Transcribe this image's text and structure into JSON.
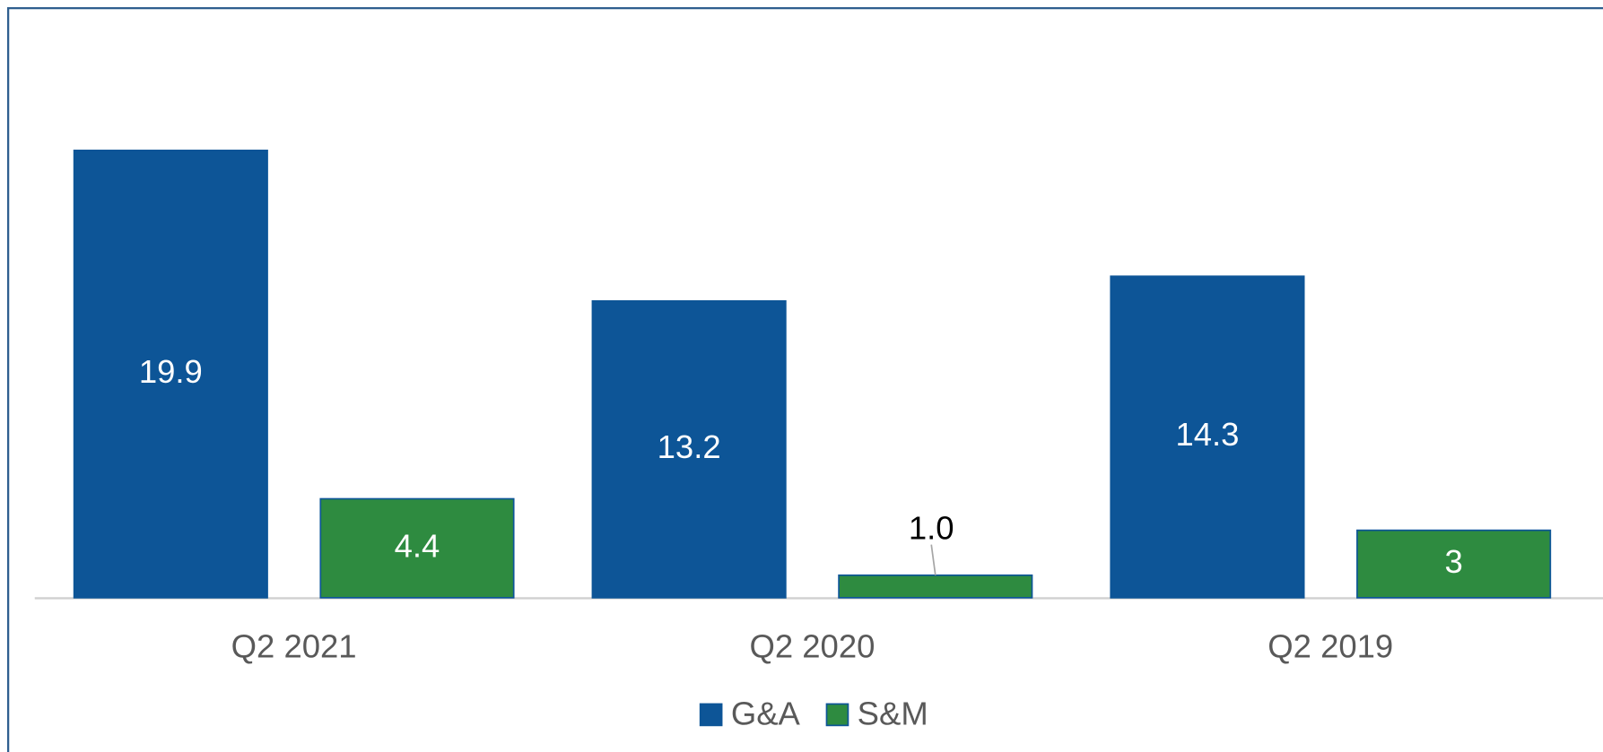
{
  "chart_data": {
    "type": "bar",
    "categories": [
      "Q2 2021",
      "Q2 2020",
      "Q2 2019"
    ],
    "series": [
      {
        "name": "G&A",
        "color": "#0d5597",
        "values": [
          19.9,
          13.2,
          14.3
        ]
      },
      {
        "name": "S&M",
        "color": "#2e8b40",
        "values": [
          4.4,
          1.0,
          3
        ],
        "value_labels": [
          "4.4",
          "1.0",
          "3"
        ]
      }
    ],
    "legend": "bottom"
  }
}
